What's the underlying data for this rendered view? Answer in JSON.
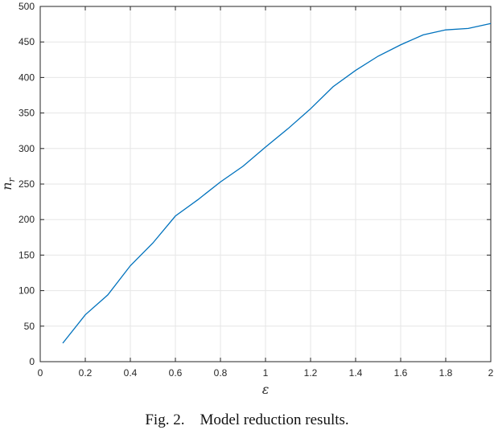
{
  "chart_data": {
    "type": "line",
    "title": "",
    "xlabel": "ε",
    "ylabel_main": "n",
    "ylabel_sub": "r",
    "xlim": [
      0,
      2
    ],
    "ylim": [
      0,
      500
    ],
    "xticks": [
      0,
      0.2,
      0.4,
      0.6,
      0.8,
      1,
      1.2,
      1.4,
      1.6,
      1.8,
      2
    ],
    "xtick_labels": [
      "0",
      "0.2",
      "0.4",
      "0.6",
      "0.8",
      "1",
      "1.2",
      "1.4",
      "1.6",
      "1.8",
      "2"
    ],
    "yticks": [
      0,
      50,
      100,
      150,
      200,
      250,
      300,
      350,
      400,
      450,
      500
    ],
    "ytick_labels": [
      "0",
      "50",
      "100",
      "150",
      "200",
      "250",
      "300",
      "350",
      "400",
      "450",
      "500"
    ],
    "grid": true,
    "line_color": "#0072BD",
    "series": [
      {
        "x": [
          0.1,
          0.2,
          0.3,
          0.4,
          0.5,
          0.6,
          0.7,
          0.8,
          0.9,
          1.0,
          1.1,
          1.2,
          1.3,
          1.4,
          1.5,
          1.6,
          1.7,
          1.8,
          1.9,
          2.0
        ],
        "y": [
          26,
          66,
          94,
          135,
          167,
          205,
          228,
          253,
          275,
          302,
          328,
          356,
          387,
          410,
          430,
          446,
          460,
          467,
          469,
          476
        ]
      }
    ]
  },
  "caption": "Fig. 2.    Model reduction results."
}
